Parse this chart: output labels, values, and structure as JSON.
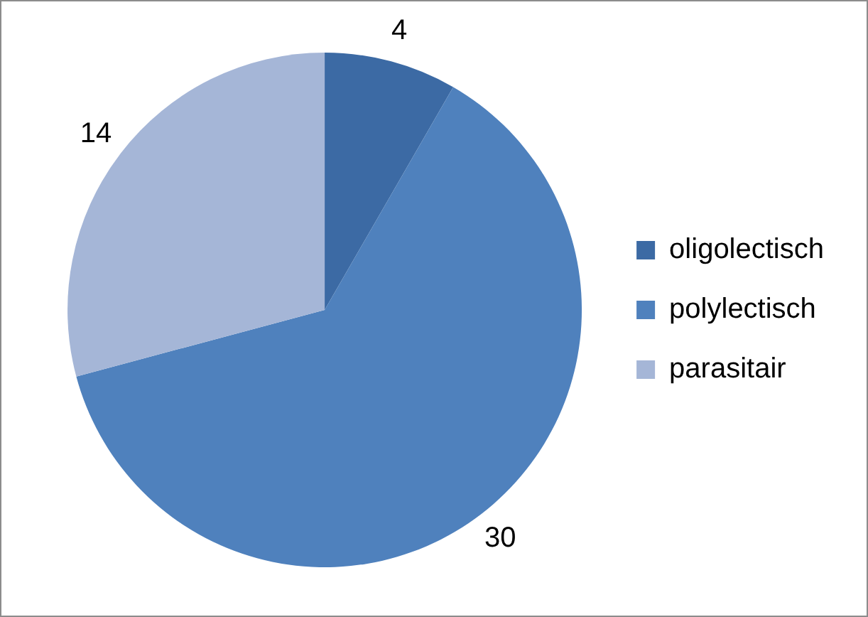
{
  "chart_data": {
    "type": "pie",
    "categories": [
      "oligolectisch",
      "polylectisch",
      "parasitair"
    ],
    "values": [
      4,
      30,
      14
    ],
    "colors": [
      "#3c6aa4",
      "#4f81bd",
      "#a5b6d7"
    ],
    "data_labels": true,
    "legend": "right"
  }
}
